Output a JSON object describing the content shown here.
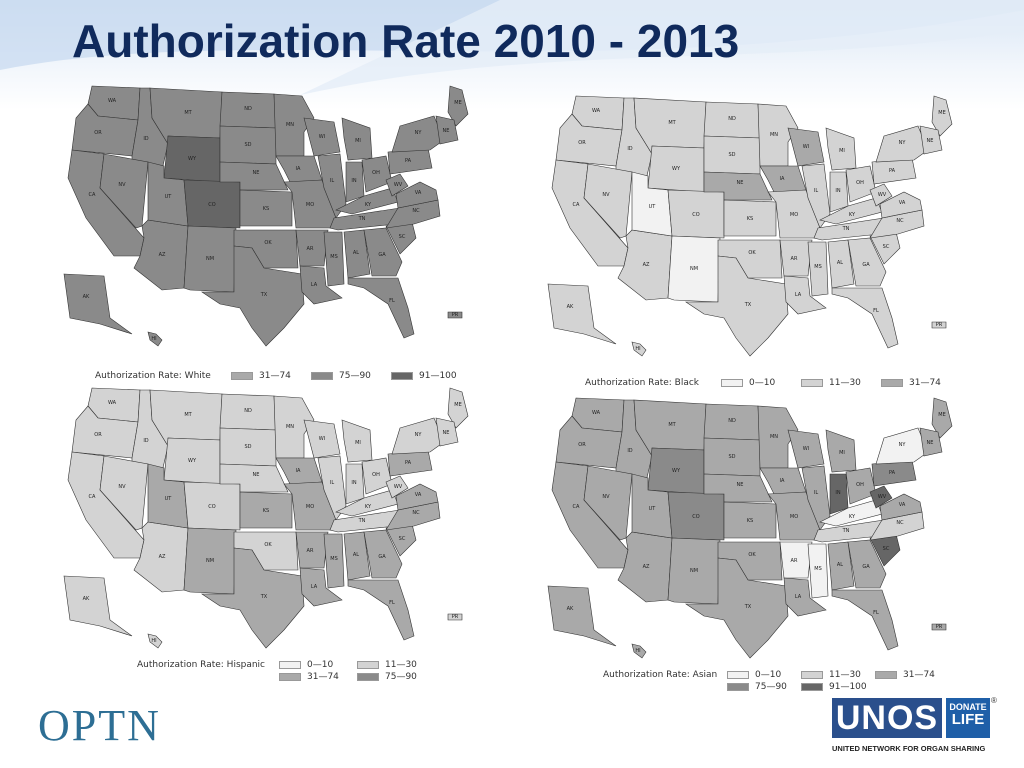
{
  "title": "Authorization Rate 2010 - 2013",
  "colors": {
    "c_0_10": "#f2f2f2",
    "c_11_30": "#d3d3d3",
    "c_31_74": "#a9a9a9",
    "c_75_90": "#8a8a8a",
    "c_91_100": "#666666",
    "title": "#102a5c",
    "optn": "#2d6e94",
    "unos": "#2a4f8c"
  },
  "maps": [
    {
      "name": "white",
      "legend_title": "Authorization Rate: White",
      "legend": [
        {
          "label": "31—74",
          "bin": "c_31_74"
        },
        {
          "label": "75—90",
          "bin": "c_75_90"
        },
        {
          "label": "91—100",
          "bin": "c_91_100"
        }
      ],
      "default_bin": "c_75_90",
      "overrides": {
        "WY": "c_91_100",
        "CO": "c_91_100"
      }
    },
    {
      "name": "black",
      "legend_title": "Authorization Rate: Black",
      "legend": [
        {
          "label": "0—10",
          "bin": "c_0_10"
        },
        {
          "label": "11—30",
          "bin": "c_11_30"
        },
        {
          "label": "31—74",
          "bin": "c_31_74"
        }
      ],
      "default_bin": "c_11_30",
      "overrides": {
        "UT": "c_0_10",
        "NM": "c_0_10",
        "NE": "c_31_74",
        "IA": "c_31_74",
        "WI": "c_31_74"
      }
    },
    {
      "name": "hispanic",
      "legend_title": "Authorization Rate: Hispanic",
      "legend": [
        {
          "label": "0—10",
          "bin": "c_0_10"
        },
        {
          "label": "11—30",
          "bin": "c_11_30"
        },
        {
          "label": "31—74",
          "bin": "c_31_74"
        },
        {
          "label": "75—90",
          "bin": "c_75_90"
        }
      ],
      "default_bin": "c_11_30",
      "overrides": {
        "UT": "c_31_74",
        "NM": "c_31_74",
        "KS": "c_31_74",
        "IA": "c_31_74",
        "MO": "c_31_74",
        "AR": "c_31_74",
        "LA": "c_31_74",
        "MS": "c_31_74",
        "AL": "c_31_74",
        "GA": "c_31_74",
        "SC": "c_31_74",
        "VA": "c_31_74",
        "NC": "c_31_74",
        "FL": "c_31_74",
        "PA": "c_31_74",
        "TX": "c_31_74"
      }
    },
    {
      "name": "asian",
      "legend_title": "Authorization Rate: Asian",
      "legend": [
        {
          "label": "0—10",
          "bin": "c_0_10"
        },
        {
          "label": "11—30",
          "bin": "c_11_30"
        },
        {
          "label": "31—74",
          "bin": "c_31_74"
        },
        {
          "label": "75—90",
          "bin": "c_75_90"
        },
        {
          "label": "91—100",
          "bin": "c_91_100"
        }
      ],
      "default_bin": "c_31_74",
      "overrides": {
        "WY": "c_75_90",
        "CO": "c_75_90",
        "IN": "c_91_100",
        "WV": "c_91_100",
        "SC": "c_91_100",
        "PA": "c_75_90",
        "AR": "c_0_10",
        "MS": "c_0_10",
        "KY": "c_0_10",
        "NY": "c_0_10",
        "TN": "c_11_30",
        "NC": "c_11_30"
      }
    }
  ],
  "states": [
    {
      "id": "WA",
      "label": "WA"
    },
    {
      "id": "OR",
      "label": "OR"
    },
    {
      "id": "CA",
      "label": "CA"
    },
    {
      "id": "ID",
      "label": "ID"
    },
    {
      "id": "NV",
      "label": "NV"
    },
    {
      "id": "AZ",
      "label": "AZ"
    },
    {
      "id": "MT",
      "label": "MT"
    },
    {
      "id": "WY",
      "label": "WY"
    },
    {
      "id": "UT",
      "label": "UT"
    },
    {
      "id": "CO",
      "label": "CO"
    },
    {
      "id": "NM",
      "label": "NM"
    },
    {
      "id": "ND",
      "label": "ND"
    },
    {
      "id": "SD",
      "label": "SD"
    },
    {
      "id": "NE",
      "label": "NE"
    },
    {
      "id": "KS",
      "label": "KS"
    },
    {
      "id": "OK",
      "label": "OK"
    },
    {
      "id": "TX",
      "label": "TX"
    },
    {
      "id": "MN",
      "label": "MN"
    },
    {
      "id": "IA",
      "label": "IA"
    },
    {
      "id": "MO",
      "label": "MO"
    },
    {
      "id": "AR",
      "label": "AR"
    },
    {
      "id": "LA",
      "label": "LA"
    },
    {
      "id": "WI",
      "label": "WI"
    },
    {
      "id": "IL",
      "label": "IL"
    },
    {
      "id": "MI",
      "label": "MI"
    },
    {
      "id": "IN",
      "label": "IN"
    },
    {
      "id": "OH",
      "label": "OH"
    },
    {
      "id": "KY",
      "label": "KY"
    },
    {
      "id": "TN",
      "label": "TN"
    },
    {
      "id": "MS",
      "label": "MS"
    },
    {
      "id": "AL",
      "label": "AL"
    },
    {
      "id": "GA",
      "label": "GA"
    },
    {
      "id": "FL",
      "label": "FL"
    },
    {
      "id": "SC",
      "label": "SC"
    },
    {
      "id": "NC",
      "label": "NC"
    },
    {
      "id": "VA",
      "label": "VA"
    },
    {
      "id": "WV",
      "label": "WV"
    },
    {
      "id": "PA",
      "label": "PA"
    },
    {
      "id": "NY",
      "label": "NY"
    },
    {
      "id": "ME",
      "label": "ME"
    },
    {
      "id": "NE2",
      "label": "NE"
    },
    {
      "id": "AK",
      "label": "AK"
    },
    {
      "id": "HI",
      "label": "HI"
    },
    {
      "id": "PR",
      "label": "PR"
    }
  ],
  "footer": {
    "optn": "OPTN",
    "unos": "UNOS",
    "donate_top": "DONATE",
    "donate_bottom": "LIFE",
    "reg": "®",
    "unos_full": "UNITED NETWORK FOR ORGAN SHARING"
  }
}
